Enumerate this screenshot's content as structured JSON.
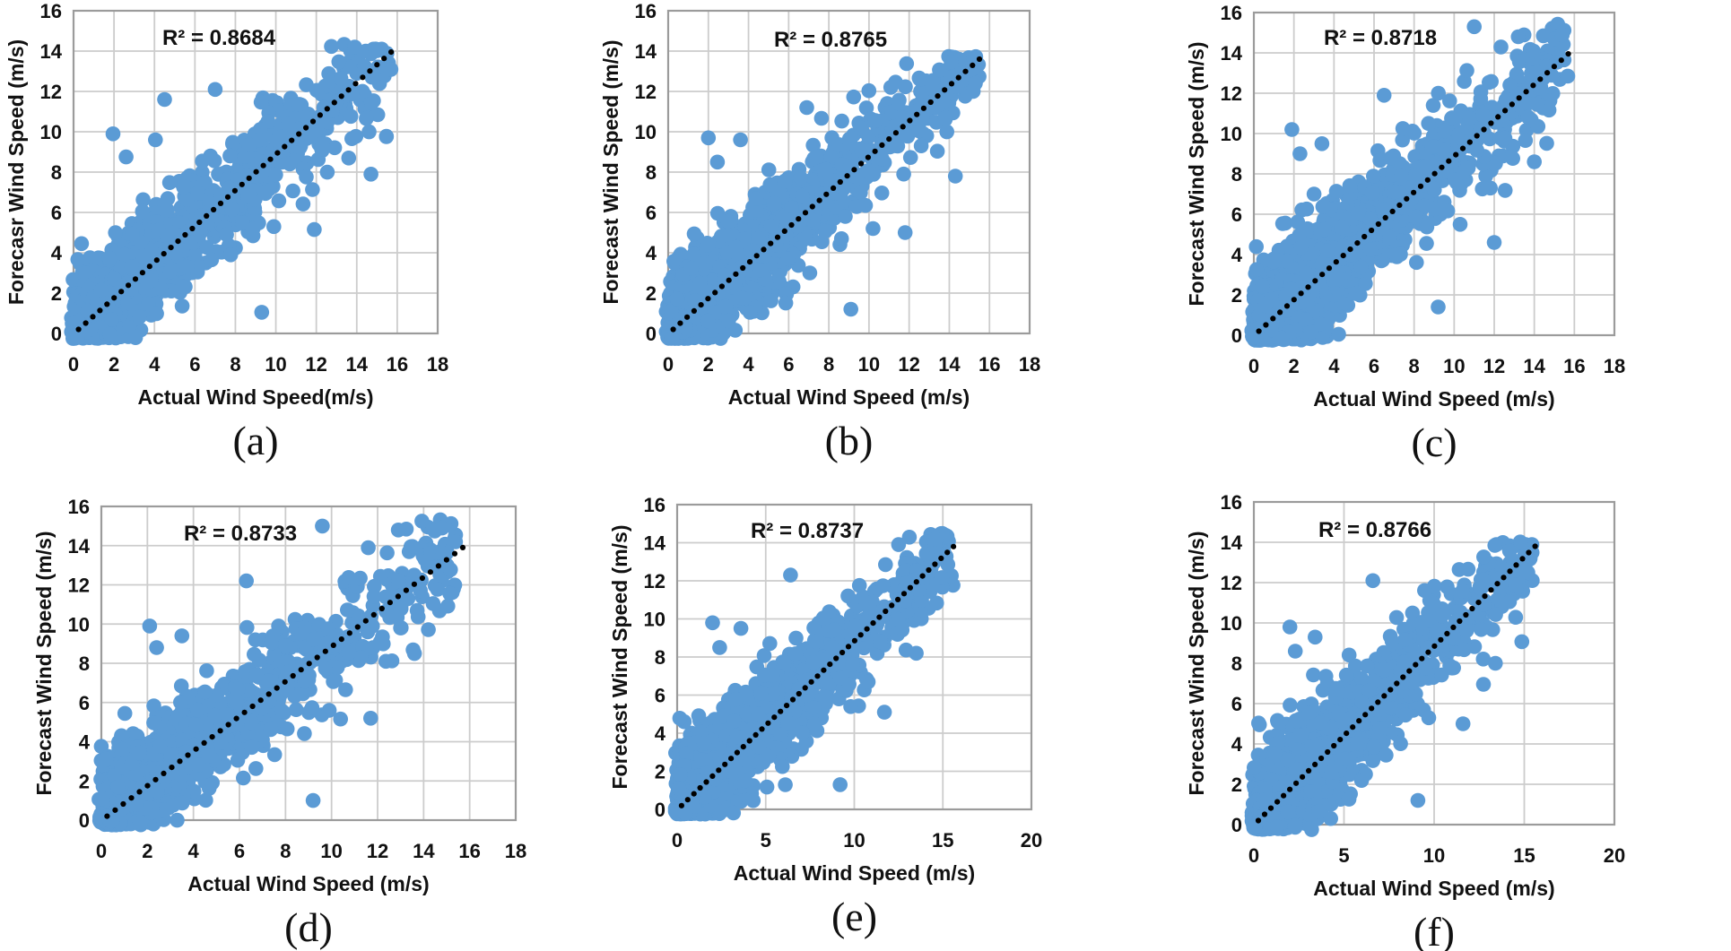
{
  "figure": {
    "background": "#ffffff",
    "description_colors": {
      "marker": "#5B9BD5",
      "trendline": "#000000",
      "gridline": "#cccccc",
      "plot_border": "#9b9b9b",
      "text": "#111111"
    }
  },
  "chart_data": [
    {
      "id": "a",
      "type": "scatter",
      "panel_label": "(a)",
      "r2_text": "R² = 0.8684",
      "r2_value": 0.8684,
      "xlabel": "Actual Wind Speed(m/s)",
      "ylabel": "Forecasr Wind Speed (m/s)",
      "xlim": [
        0,
        18
      ],
      "ylim": [
        0,
        16
      ],
      "x_ticks": [
        0,
        2,
        4,
        6,
        8,
        10,
        12,
        14,
        16,
        18
      ],
      "y_ticks": [
        0,
        2,
        4,
        6,
        8,
        10,
        12,
        14,
        16
      ],
      "x_grid_step": 2,
      "y_grid_step": 2,
      "grid": true,
      "marker_color": "#5B9BD5",
      "trendline": {
        "style": "dotted",
        "color": "#000000",
        "from": [
          0.25,
          0.2
        ],
        "to": [
          15.7,
          13.95
        ]
      },
      "cloud": {
        "n": 1500,
        "seed": 11,
        "x_exp_mean": 4.2,
        "x_max": 15.6,
        "slope": 0.875,
        "intercept": 0.15,
        "noise_sd": 1.32,
        "y_cap": 14.35
      },
      "outliers": [
        [
          1.95,
          9.9
        ],
        [
          2.6,
          8.75
        ],
        [
          4.05,
          9.6
        ],
        [
          4.5,
          11.6
        ],
        [
          7.0,
          12.1
        ],
        [
          9.3,
          1.05
        ],
        [
          11.9,
          5.15
        ],
        [
          9.9,
          5.3
        ],
        [
          12.3,
          9.4
        ],
        [
          14.7,
          7.9
        ],
        [
          13.9,
          14.2
        ]
      ]
    },
    {
      "id": "b",
      "type": "scatter",
      "panel_label": "(b)",
      "r2_text": "R² = 0.8765",
      "r2_value": 0.8765,
      "xlabel": "Actual Wind Speed (m/s)",
      "ylabel": "Forecast Wind Speed (m/s)",
      "xlim": [
        0,
        18
      ],
      "ylim": [
        0,
        16
      ],
      "x_ticks": [
        0,
        2,
        4,
        6,
        8,
        10,
        12,
        14,
        16,
        18
      ],
      "y_ticks": [
        0,
        2,
        4,
        6,
        8,
        10,
        12,
        14,
        16
      ],
      "x_grid_step": 2,
      "y_grid_step": 2,
      "grid": true,
      "marker_color": "#5B9BD5",
      "trendline": {
        "style": "dotted",
        "color": "#000000",
        "from": [
          0.25,
          0.2
        ],
        "to": [
          15.5,
          13.6
        ]
      },
      "cloud": {
        "n": 1500,
        "seed": 22,
        "x_exp_mean": 4.2,
        "x_max": 15.5,
        "slope": 0.87,
        "intercept": 0.15,
        "noise_sd": 1.28,
        "y_cap": 13.75
      },
      "outliers": [
        [
          2.0,
          9.7
        ],
        [
          2.45,
          8.5
        ],
        [
          3.6,
          9.6
        ],
        [
          6.9,
          11.2
        ],
        [
          9.1,
          1.2
        ],
        [
          11.8,
          5.0
        ],
        [
          10.2,
          5.2
        ],
        [
          14.3,
          7.8
        ],
        [
          12.6,
          9.3
        ],
        [
          15.3,
          12.4
        ]
      ]
    },
    {
      "id": "c",
      "type": "scatter",
      "panel_label": "(c)",
      "r2_text": "R² = 0.8718",
      "r2_value": 0.8718,
      "xlabel": "Actual Wind Speed (m/s)",
      "ylabel": "Forecast Wind Speed (m/s)",
      "xlim": [
        0,
        18
      ],
      "ylim": [
        0,
        16
      ],
      "x_ticks": [
        0,
        2,
        4,
        6,
        8,
        10,
        12,
        14,
        16,
        18
      ],
      "y_ticks": [
        0,
        2,
        4,
        6,
        8,
        10,
        12,
        14,
        16
      ],
      "x_grid_step": 2,
      "y_grid_step": 2,
      "grid": true,
      "marker_color": "#5B9BD5",
      "trendline": {
        "style": "dotted",
        "color": "#000000",
        "from": [
          0.25,
          0.2
        ],
        "to": [
          15.7,
          13.95
        ]
      },
      "cloud": {
        "n": 1500,
        "seed": 33,
        "x_exp_mean": 4.3,
        "x_max": 15.6,
        "slope": 0.88,
        "intercept": 0.15,
        "noise_sd": 1.38,
        "y_cap": 15.6
      },
      "outliers": [
        [
          1.9,
          10.2
        ],
        [
          2.3,
          9.0
        ],
        [
          3.4,
          9.5
        ],
        [
          6.5,
          11.9
        ],
        [
          9.2,
          1.4
        ],
        [
          12.0,
          4.6
        ],
        [
          10.3,
          5.5
        ],
        [
          14.0,
          8.6
        ],
        [
          11.0,
          15.3
        ],
        [
          13.2,
          14.8
        ],
        [
          15.0,
          14.7
        ],
        [
          15.4,
          14.9
        ]
      ]
    },
    {
      "id": "d",
      "type": "scatter",
      "panel_label": "(d)",
      "r2_text": "R² = 0.8733",
      "r2_value": 0.8733,
      "xlabel": "Actual Wind Speed (m/s)",
      "ylabel": "Forecast Wind Speed (m/s)",
      "xlim": [
        0,
        18
      ],
      "ylim": [
        0,
        16
      ],
      "x_ticks": [
        0,
        2,
        4,
        6,
        8,
        10,
        12,
        14,
        16,
        18
      ],
      "y_ticks": [
        0,
        2,
        4,
        6,
        8,
        10,
        12,
        14,
        16
      ],
      "x_grid_step": 2,
      "y_grid_step": 2,
      "grid": true,
      "marker_color": "#5B9BD5",
      "trendline": {
        "style": "dotted",
        "color": "#000000",
        "from": [
          0.25,
          0.2
        ],
        "to": [
          15.7,
          13.9
        ]
      },
      "cloud": {
        "n": 1500,
        "seed": 44,
        "x_exp_mean": 4.2,
        "x_max": 15.6,
        "slope": 0.875,
        "intercept": 0.15,
        "noise_sd": 1.35,
        "y_cap": 15.35
      },
      "outliers": [
        [
          2.1,
          9.9
        ],
        [
          2.4,
          8.8
        ],
        [
          3.5,
          9.4
        ],
        [
          6.3,
          12.2
        ],
        [
          9.2,
          1.0
        ],
        [
          11.7,
          5.2
        ],
        [
          9.9,
          5.6
        ],
        [
          13.6,
          8.5
        ],
        [
          9.6,
          15.0
        ],
        [
          12.9,
          14.8
        ],
        [
          14.8,
          14.9
        ]
      ]
    },
    {
      "id": "e",
      "type": "scatter",
      "panel_label": "(e)",
      "r2_text": "R² = 0.8737",
      "r2_value": 0.8737,
      "xlabel": "Actual Wind Speed (m/s)",
      "ylabel": "Forecast Wind Speed (m/s)",
      "xlim": [
        0,
        20
      ],
      "ylim": [
        0,
        16
      ],
      "x_ticks": [
        0,
        5,
        10,
        15,
        20
      ],
      "y_ticks": [
        0,
        2,
        4,
        6,
        8,
        10,
        12,
        14,
        16
      ],
      "x_grid_step": 5,
      "y_grid_step": 2,
      "grid": true,
      "marker_color": "#5B9BD5",
      "trendline": {
        "style": "dotted",
        "color": "#000000",
        "from": [
          0.25,
          0.2
        ],
        "to": [
          15.6,
          13.8
        ]
      },
      "cloud": {
        "n": 1500,
        "seed": 55,
        "x_exp_mean": 4.2,
        "x_max": 15.5,
        "slope": 0.875,
        "intercept": 0.15,
        "noise_sd": 1.3,
        "y_cap": 14.55
      },
      "outliers": [
        [
          2.0,
          9.8
        ],
        [
          2.4,
          8.5
        ],
        [
          3.6,
          9.5
        ],
        [
          6.4,
          12.3
        ],
        [
          9.2,
          1.3
        ],
        [
          11.7,
          5.1
        ],
        [
          9.8,
          5.4
        ],
        [
          13.5,
          8.2
        ],
        [
          12.5,
          13.9
        ],
        [
          14.6,
          14.2
        ]
      ]
    },
    {
      "id": "f",
      "type": "scatter",
      "panel_label": "(f)",
      "r2_text": "R² = 0.8766",
      "r2_value": 0.8766,
      "xlabel": "Actual Wind Speed (m/s)",
      "ylabel": "Forecast Wind Speed (m/s)",
      "xlim": [
        0,
        20
      ],
      "ylim": [
        0,
        16
      ],
      "x_ticks": [
        0,
        5,
        10,
        15,
        20
      ],
      "y_ticks": [
        0,
        2,
        4,
        6,
        8,
        10,
        12,
        14,
        16
      ],
      "x_grid_step": 5,
      "y_grid_step": 2,
      "grid": true,
      "marker_color": "#5B9BD5",
      "trendline": {
        "style": "dotted",
        "color": "#000000",
        "from": [
          0.25,
          0.2
        ],
        "to": [
          15.6,
          13.8
        ]
      },
      "cloud": {
        "n": 1500,
        "seed": 66,
        "x_exp_mean": 4.2,
        "x_max": 15.6,
        "slope": 0.87,
        "intercept": 0.15,
        "noise_sd": 1.28,
        "y_cap": 14.05
      },
      "outliers": [
        [
          2.0,
          9.8
        ],
        [
          2.3,
          8.6
        ],
        [
          3.4,
          9.3
        ],
        [
          6.6,
          12.1
        ],
        [
          9.1,
          1.2
        ],
        [
          11.6,
          5.0
        ],
        [
          9.7,
          5.3
        ],
        [
          13.4,
          8.0
        ],
        [
          15.2,
          12.5
        ]
      ]
    }
  ]
}
